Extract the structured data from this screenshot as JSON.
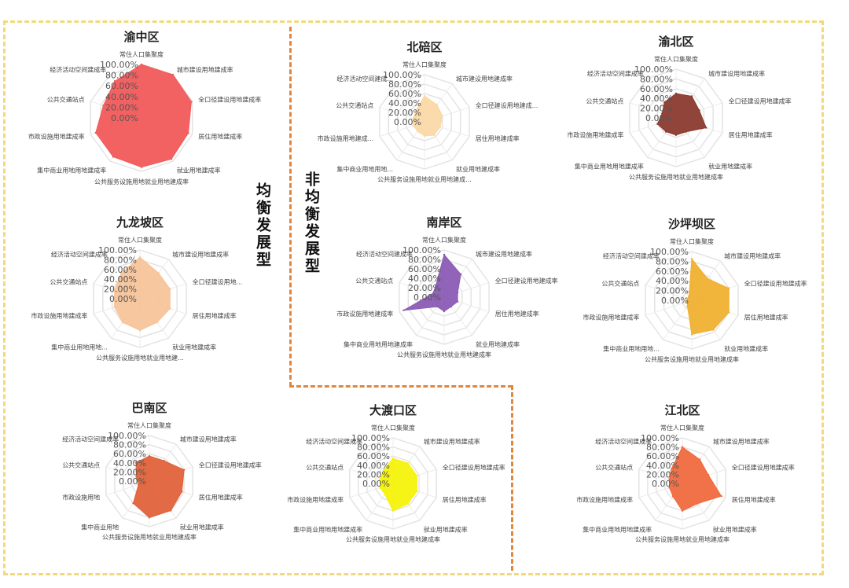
{
  "groups": {
    "balanced": "均衡发展型",
    "unbalanced": "非均衡发展型"
  },
  "chart_data": [
    {
      "type": "radar",
      "title": "渝中区",
      "color": "#f25a5a",
      "axes": [
        "常住人口集聚度",
        "城市建设用地建成率",
        "全口径建设用地建成率",
        "居住用地建成率",
        "就业用地建成率",
        "公共服务设施用地就业用地建成率",
        "集中商业用地用地建成率",
        "市政设施用地建成率",
        "公共交通站点",
        "经济活动空间建成率"
      ],
      "tick_labels": [
        "0.00%",
        "20.00%",
        "40.00%",
        "60.00%",
        "80.00%",
        "100.00%"
      ],
      "values": [
        1.0,
        1.0,
        0.98,
        0.92,
        0.95,
        0.92,
        0.9,
        0.9,
        0.75,
        0.85
      ]
    },
    {
      "type": "radar",
      "title": "北碚区",
      "color": "#fbd9a6",
      "axes": [
        "常住人口集聚度",
        "城市建设用地建成率",
        "全口径建设用地建成...",
        "居住用地建成率",
        "就业用地建成率",
        "公共服务设施用地就业用地建成...",
        "集中商业用地用地...",
        "市政设施用地建成...",
        "公共交通站点",
        "经济活动空间建成..."
      ],
      "tick_labels": [
        "0.00%",
        "20.00%",
        "40.00%",
        "60.00%",
        "80.00%",
        "100.00%"
      ],
      "values": [
        0.55,
        0.45,
        0.4,
        0.35,
        0.35,
        0.3,
        0.25,
        0.25,
        0.25,
        0.3
      ]
    },
    {
      "type": "radar",
      "title": "渝北区",
      "color": "#8b3a2f",
      "axes": [
        "常住人口集聚度",
        "城市建设用地建成率",
        "全口径建设用地建成率",
        "居住用地建成率",
        "就业用地建成率",
        "公共服务设施用地就业用地建成率",
        "集中商业用地用地建成率",
        "市政设施用地建成率",
        "公共交通站点",
        "经济活动空间建成率"
      ],
      "tick_labels": [
        "0.00%",
        "20.00%",
        "40.00%",
        "60.00%",
        "80.00%",
        "100.00%"
      ],
      "values": [
        0.5,
        0.55,
        0.5,
        0.65,
        0.35,
        0.35,
        0.35,
        0.4,
        0.3,
        0.4
      ]
    },
    {
      "type": "radar",
      "title": "九龙坡区",
      "color": "#f7c49a",
      "axes": [
        "常住人口集聚度",
        "城市建设用地建成率",
        "全口径建设用地...",
        "居住用地建成率",
        "就业用地建成率",
        "公共服务设施用地就业用地建...",
        "集中商业用地用地...",
        "市政设施用地建成率",
        "公共交通站点",
        "经济活动空间建成率"
      ],
      "tick_labels": [
        "0.00%",
        "20.00%",
        "40.00%",
        "60.00%",
        "80.00%",
        "100.00%"
      ],
      "values": [
        0.85,
        0.65,
        0.65,
        0.65,
        0.6,
        0.65,
        0.6,
        0.55,
        0.55,
        0.65
      ]
    },
    {
      "type": "radar",
      "title": "南岸区",
      "color": "#8b5bb5",
      "axes": [
        "常住人口集聚度",
        "城市建设用地建成率",
        "全口径建设用地建成率",
        "居住用地建成率",
        "就业用地建成率",
        "公共服务设施用地就业用地建成率",
        "集中商业用地用地建成率",
        "市政设施用地建成率",
        "公共交通站点",
        "经济活动空间建成率"
      ],
      "tick_labels": [
        "0.00%",
        "20.00%",
        "40.00%",
        "60.00%",
        "80.00%",
        "100.00%"
      ],
      "values": [
        0.9,
        0.6,
        0.3,
        0.3,
        0.25,
        0.3,
        0.25,
        0.9,
        0.25,
        0.3
      ]
    },
    {
      "type": "radar",
      "title": "沙坪坝区",
      "color": "#f0b132",
      "axes": [
        "常住人口集聚度",
        "城市建设用地建成率",
        "全口径建设用地建成率",
        "居住用地建成率",
        "就业用地建成率",
        "公共服务设施用地就业用地建成率",
        "集中商业用地用地...",
        "市政设施用地建成率",
        "公共交通站点",
        "经济活动空间建成率"
      ],
      "tick_labels": [
        "0.00%",
        "20.00%",
        "40.00%",
        "60.00%",
        "80.00%",
        "100.00%"
      ],
      "values": [
        0.85,
        0.55,
        0.8,
        0.8,
        0.75,
        0.7,
        0.15,
        0.1,
        0.1,
        0.1
      ]
    },
    {
      "type": "radar",
      "title": "巴南区",
      "color": "#e0623a",
      "axes": [
        "常住人口集聚度",
        "城市建设用地建成率",
        "全口径建设用地建成率",
        "居住用地建成率",
        "就业用地建成率",
        "公共服务设施用地就业用地建成率",
        "集中商业用地",
        "市政设施用地",
        "公共交通站点",
        "经济活动空间建成率"
      ],
      "tick_labels": [
        "0.00%",
        "20.00%",
        "40.00%",
        "60.00%",
        "80.00%",
        "100.00%"
      ],
      "values": [
        0.55,
        0.55,
        0.8,
        0.75,
        0.8,
        0.8,
        0.6,
        0.25,
        0.3,
        0.5
      ]
    },
    {
      "type": "radar",
      "title": "大渡口区",
      "color": "#f5f20a",
      "axes": [
        "常住人口集聚度",
        "城市建设用地建成率",
        "全口径建设用地建成率",
        "居住用地建成率",
        "就业用地建成率",
        "公共服务设施用地就业用地建成率",
        "集中商业用地用地建成率",
        "市政设施用地建成率",
        "公共交通站点",
        "经济活动空间建成率"
      ],
      "tick_labels": [
        "0.00%",
        "20.00%",
        "40.00%",
        "60.00%",
        "80.00%",
        "100.00%"
      ],
      "values": [
        0.55,
        0.55,
        0.55,
        0.55,
        0.55,
        0.6,
        0.3,
        0.3,
        0.3,
        0.35
      ]
    },
    {
      "type": "radar",
      "title": "江北区",
      "color": "#f06a3e",
      "axes": [
        "常住人口集聚度",
        "城市建设用地建成率",
        "全口径建设用地建成率",
        "居住用地建成率",
        "就业用地建成率",
        "公共服务设施用地就业用地建成率",
        "集中商业用地用地建成率",
        "市政设施用地建成率",
        "公共交通站点",
        "经济活动空间建成率"
      ],
      "tick_labels": [
        "0.00%",
        "20.00%",
        "40.00%",
        "60.00%",
        "80.00%",
        "100.00%"
      ],
      "values": [
        0.8,
        0.65,
        0.6,
        0.9,
        0.55,
        0.6,
        0.35,
        0.3,
        0.3,
        0.4
      ]
    }
  ]
}
